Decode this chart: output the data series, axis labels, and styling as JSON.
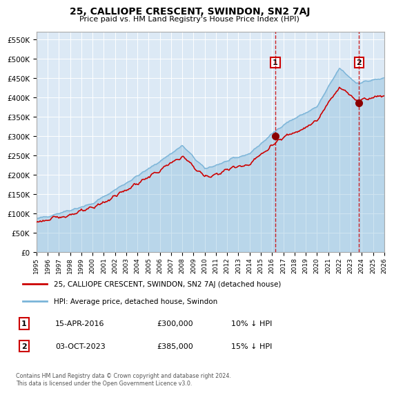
{
  "title": "25, CALLIOPE CRESCENT, SWINDON, SN2 7AJ",
  "subtitle": "Price paid vs. HM Land Registry's House Price Index (HPI)",
  "background_color": "#ffffff",
  "plot_bg_color": "#dce9f5",
  "hpi_color": "#7ab4d8",
  "property_color": "#cc0000",
  "marker_color": "#8b0000",
  "dashed_line_color": "#cc0000",
  "annotation_box_color": "#cc0000",
  "legend_label_property": "25, CALLIOPE CRESCENT, SWINDON, SN2 7AJ (detached house)",
  "legend_label_hpi": "HPI: Average price, detached house, Swindon",
  "sale1_label": "1",
  "sale1_date": "15-APR-2016",
  "sale1_price": "£300,000",
  "sale1_hpi": "10% ↓ HPI",
  "sale1_year": 2016.29,
  "sale1_value": 300000,
  "sale2_label": "2",
  "sale2_date": "03-OCT-2023",
  "sale2_price": "£385,000",
  "sale2_hpi": "15% ↓ HPI",
  "sale2_year": 2023.75,
  "sale2_value": 385000,
  "footer": "Contains HM Land Registry data © Crown copyright and database right 2024.\nThis data is licensed under the Open Government Licence v3.0.",
  "ylim": [
    0,
    570000
  ],
  "yticks": [
    0,
    50000,
    100000,
    150000,
    200000,
    250000,
    300000,
    350000,
    400000,
    450000,
    500000,
    550000
  ],
  "xmin": 1995,
  "xmax": 2026
}
